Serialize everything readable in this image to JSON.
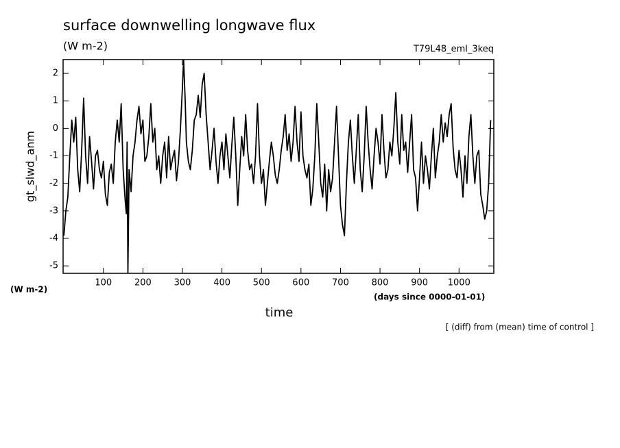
{
  "chart_data": {
    "type": "line",
    "title": "surface downwelling longwave flux",
    "subtitle": "(W m-2)",
    "annotation": "T79L48_eml_3keq",
    "y_label": "gt_slwd_anm",
    "y_unit": "(W m-2)",
    "x_label": "time",
    "x_unit": "(days since 0000-01-01)",
    "footnote": "[ (diff) from (mean) time of control ]",
    "color": "#000000",
    "xlim": [
      -2,
      1088
    ],
    "ylim": [
      -5.27,
      2.5
    ],
    "xticks": [
      100,
      200,
      300,
      400,
      500,
      600,
      700,
      800,
      900,
      1000
    ],
    "yticks": [
      -5,
      -4,
      -3,
      -2,
      -1,
      0,
      1,
      2
    ],
    "x": [
      0,
      5,
      10,
      15,
      20,
      25,
      30,
      35,
      40,
      45,
      50,
      55,
      60,
      65,
      70,
      75,
      80,
      85,
      90,
      95,
      100,
      105,
      110,
      115,
      120,
      125,
      130,
      135,
      140,
      145,
      150,
      155,
      158,
      160,
      162,
      165,
      170,
      175,
      180,
      185,
      190,
      195,
      200,
      205,
      210,
      215,
      220,
      225,
      230,
      235,
      240,
      245,
      250,
      255,
      260,
      265,
      270,
      275,
      280,
      285,
      290,
      295,
      300,
      303,
      307,
      310,
      315,
      320,
      325,
      330,
      335,
      340,
      345,
      350,
      355,
      360,
      365,
      370,
      375,
      380,
      385,
      390,
      395,
      400,
      405,
      410,
      415,
      420,
      425,
      430,
      435,
      440,
      445,
      450,
      455,
      460,
      465,
      470,
      475,
      480,
      485,
      490,
      495,
      500,
      505,
      510,
      515,
      520,
      525,
      530,
      535,
      540,
      545,
      550,
      555,
      560,
      565,
      570,
      575,
      580,
      585,
      590,
      595,
      600,
      605,
      610,
      615,
      620,
      625,
      630,
      635,
      640,
      645,
      650,
      655,
      660,
      665,
      670,
      675,
      680,
      685,
      690,
      695,
      700,
      705,
      710,
      715,
      720,
      725,
      730,
      735,
      740,
      745,
      750,
      755,
      760,
      765,
      770,
      775,
      780,
      785,
      790,
      795,
      800,
      805,
      810,
      815,
      820,
      825,
      830,
      835,
      840,
      845,
      850,
      855,
      860,
      865,
      870,
      875,
      880,
      885,
      890,
      895,
      900,
      905,
      910,
      915,
      920,
      925,
      930,
      935,
      940,
      945,
      950,
      955,
      960,
      965,
      970,
      975,
      980,
      985,
      990,
      995,
      1000,
      1005,
      1010,
      1015,
      1020,
      1025,
      1030,
      1035,
      1040,
      1045,
      1050,
      1055,
      1060,
      1065,
      1070,
      1075,
      1080
    ],
    "values": [
      -3.9,
      -3,
      -2.5,
      -1,
      0.3,
      -0.5,
      0.4,
      -1.5,
      -2.3,
      -0.8,
      1.1,
      -1,
      -2,
      -0.3,
      -1.2,
      -2.2,
      -1,
      -0.8,
      -1.5,
      -1.8,
      -1.2,
      -2.4,
      -2.8,
      -1.6,
      -1.3,
      -2,
      -0.5,
      0.3,
      -0.5,
      0.9,
      -1.5,
      -2.6,
      -3.1,
      -0.5,
      -5.27,
      -1.5,
      -2.3,
      -1,
      -0.5,
      0.3,
      0.8,
      -0.2,
      0.3,
      -1.2,
      -1,
      -0.3,
      0.9,
      -0.5,
      0,
      -1.5,
      -1,
      -2,
      -1,
      -0.5,
      -1.8,
      -0.3,
      -1.5,
      -1.1,
      -0.8,
      -1.9,
      -1.2,
      0,
      1.5,
      2.5,
      1,
      -0.5,
      -1.2,
      -1.5,
      -0.8,
      0.3,
      0.5,
      1.2,
      0.4,
      1.6,
      2,
      0.5,
      -0.5,
      -1.5,
      -0.8,
      0,
      -1.2,
      -2,
      -1,
      -0.5,
      -1.5,
      -0.2,
      -1,
      -1.8,
      -0.6,
      0.4,
      -1,
      -2.8,
      -1.5,
      -0.3,
      -1,
      0.5,
      -0.8,
      -1.5,
      -1.3,
      -2,
      -1,
      0.9,
      -1,
      -2,
      -1.5,
      -2.8,
      -2,
      -1.2,
      -0.5,
      -1,
      -1.7,
      -2,
      -1.5,
      -0.8,
      -0.3,
      0.5,
      -0.8,
      -0.2,
      -1.2,
      -0.5,
      0.8,
      -0.5,
      -1.2,
      0.6,
      -1,
      -1.5,
      -1.8,
      -1.3,
      -2.8,
      -2.2,
      -1,
      0.9,
      -0.5,
      -2,
      -2.5,
      -1.3,
      -3,
      -1.5,
      -2.3,
      -1.8,
      -0.5,
      0.8,
      -1,
      -2.8,
      -3.5,
      -3.9,
      -2,
      -0.5,
      0.3,
      -1,
      -2,
      -0.8,
      0.5,
      -1.5,
      -2.3,
      -1,
      0.8,
      -0.5,
      -1.5,
      -2.2,
      -1,
      0,
      -0.5,
      -1.3,
      0.5,
      -0.8,
      -1.8,
      -1.5,
      -0.5,
      -1,
      0,
      1.3,
      -0.5,
      -1.3,
      0.5,
      -0.8,
      -0.5,
      -1.6,
      -0.5,
      0.5,
      -1.5,
      -1.8,
      -3,
      -1.8,
      -0.5,
      -2,
      -1,
      -1.5,
      -2.2,
      -1,
      0,
      -1.8,
      -1,
      -0.5,
      0.5,
      -0.5,
      0.2,
      -0.3,
      0.5,
      0.9,
      -0.7,
      -1.5,
      -1.8,
      -0.8,
      -1.5,
      -2.5,
      -1,
      -2,
      -0.3,
      0.5,
      -1,
      -2,
      -1,
      -0.8,
      -2.4,
      -2.8,
      -3.3,
      -3,
      -2,
      0.3
    ]
  }
}
